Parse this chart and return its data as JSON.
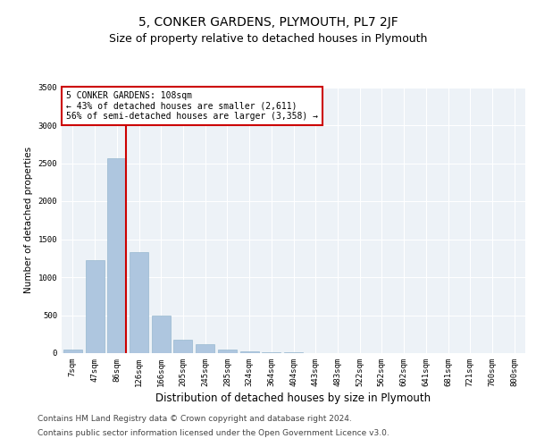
{
  "title": "5, CONKER GARDENS, PLYMOUTH, PL7 2JF",
  "subtitle": "Size of property relative to detached houses in Plymouth",
  "xlabel": "Distribution of detached houses by size in Plymouth",
  "ylabel": "Number of detached properties",
  "categories": [
    "7sqm",
    "47sqm",
    "86sqm",
    "126sqm",
    "166sqm",
    "205sqm",
    "245sqm",
    "285sqm",
    "324sqm",
    "364sqm",
    "404sqm",
    "443sqm",
    "483sqm",
    "522sqm",
    "562sqm",
    "602sqm",
    "641sqm",
    "681sqm",
    "721sqm",
    "760sqm",
    "800sqm"
  ],
  "values": [
    50,
    1220,
    2570,
    1330,
    490,
    175,
    120,
    50,
    20,
    10,
    8,
    5,
    5,
    0,
    0,
    0,
    0,
    0,
    0,
    0,
    0
  ],
  "bar_color": "#aec6df",
  "bar_edge_color": "#8aafc8",
  "vline_color": "#cc0000",
  "annotation_text": "5 CONKER GARDENS: 108sqm\n← 43% of detached houses are smaller (2,611)\n56% of semi-detached houses are larger (3,358) →",
  "annotation_box_color": "#ffffff",
  "annotation_box_edge": "#cc0000",
  "ylim": [
    0,
    3500
  ],
  "yticks": [
    0,
    500,
    1000,
    1500,
    2000,
    2500,
    3000,
    3500
  ],
  "background_color": "#edf2f7",
  "footer_line1": "Contains HM Land Registry data © Crown copyright and database right 2024.",
  "footer_line2": "Contains public sector information licensed under the Open Government Licence v3.0.",
  "title_fontsize": 10,
  "subtitle_fontsize": 9,
  "xlabel_fontsize": 8.5,
  "ylabel_fontsize": 7.5,
  "tick_fontsize": 6.5,
  "footer_fontsize": 6.5
}
